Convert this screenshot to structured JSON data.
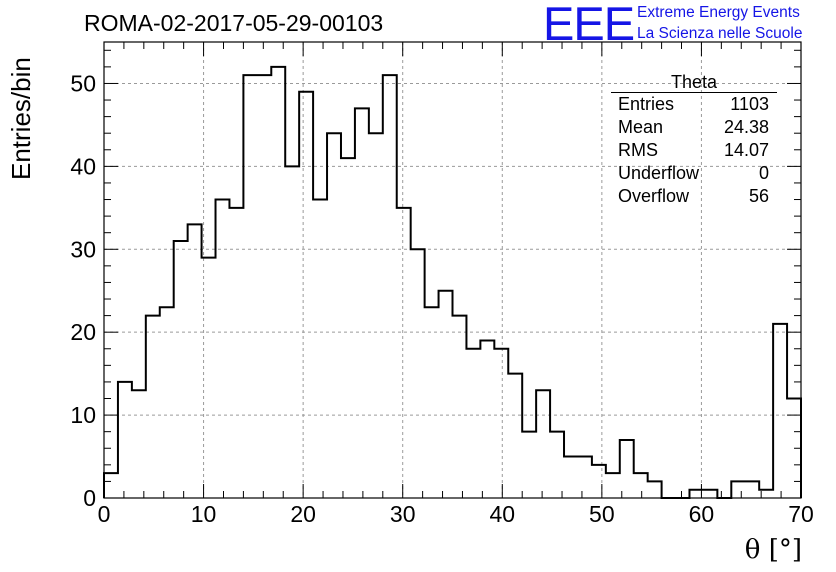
{
  "header": {
    "title": "ROMA-02-2017-05-29-00103",
    "logo_text": "EEE",
    "logo_line1": "Extreme Energy Events",
    "logo_line2": "La Scienza nelle Scuole"
  },
  "stats_box": {
    "title": "Theta",
    "rows": [
      {
        "label": "Entries",
        "value": "1103"
      },
      {
        "label": "Mean",
        "value": "24.38"
      },
      {
        "label": "RMS",
        "value": "14.07"
      },
      {
        "label": "Underflow",
        "value": "0"
      },
      {
        "label": "Overflow",
        "value": "56"
      }
    ]
  },
  "chart_data": {
    "type": "histogram",
    "title": "ROMA-02-2017-05-29-00103",
    "xlabel": "θ [°]",
    "ylabel": "Entries/bin",
    "xlim": [
      0,
      70
    ],
    "ylim": [
      0,
      55
    ],
    "bin_width": 1.4,
    "x_ticks": [
      0,
      10,
      20,
      30,
      40,
      50,
      60,
      70
    ],
    "y_ticks": [
      0,
      10,
      20,
      30,
      40,
      50
    ],
    "grid": true,
    "values": [
      3,
      14,
      13,
      22,
      23,
      31,
      33,
      29,
      36,
      35,
      51,
      51,
      52,
      40,
      49,
      36,
      44,
      41,
      47,
      44,
      51,
      35,
      30,
      23,
      25,
      22,
      18,
      19,
      18,
      15,
      8,
      13,
      8,
      5,
      5,
      4,
      3,
      7,
      3,
      2,
      0,
      0,
      1,
      1,
      0,
      2,
      2,
      1,
      21,
      12
    ]
  }
}
